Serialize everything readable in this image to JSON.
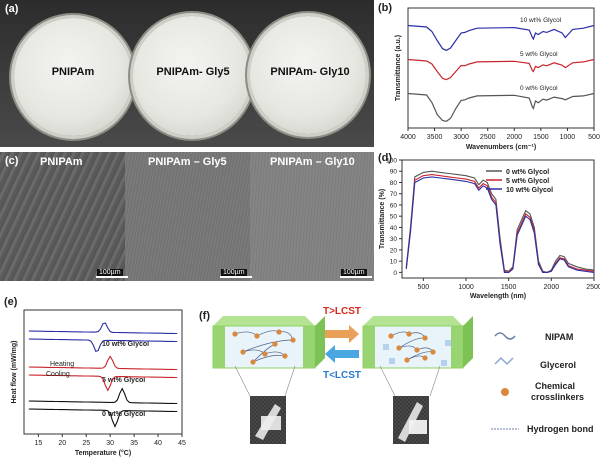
{
  "panel_labels": {
    "a": "(a)",
    "b": "(b)",
    "c": "(c)",
    "d": "(d)",
    "e": "(e)",
    "f": "(f)"
  },
  "panel_a": {
    "samples": [
      "PNIPAm",
      "PNIPAm- Gly5",
      "PNIPAm- Gly10"
    ]
  },
  "panel_c": {
    "samples": [
      "PNIPAm",
      "PNIPAm – Gly5",
      "PNIPAm – Gly10"
    ],
    "scale_bar": "100µm"
  },
  "panel_f": {
    "arrow_top": "T>LCST",
    "arrow_bottom": "T<LCST",
    "legend": [
      "NIPAM",
      "Glycerol",
      "Chemical crosslinkers",
      "Hydrogen bond"
    ],
    "colors": {
      "gel": "#8fd163",
      "arrow_top": "#e9a15a",
      "arrow_bottom": "#4aa6e0",
      "crosslinker": "#d8893c"
    }
  },
  "chart_data": [
    {
      "id": "b",
      "type": "line",
      "xlabel": "Wavenumbers (cm⁻¹)",
      "ylabel": "Transmittance (a.u.)",
      "xlim": [
        4000,
        500
      ],
      "xticks": [
        4000,
        3500,
        3000,
        2500,
        2000,
        1500,
        1000,
        500
      ],
      "series": [
        {
          "name": "10 wt% Glycol",
          "color": "#2b2fa8",
          "offset": 2,
          "x": [
            4000,
            3650,
            3550,
            3450,
            3350,
            3280,
            3200,
            3100,
            3000,
            2930,
            2850,
            2700,
            2000,
            1720,
            1660,
            1640,
            1600,
            1550,
            1460,
            1390,
            1250,
            1100,
            1040,
            900,
            700,
            500
          ],
          "y": [
            0.95,
            0.9,
            0.75,
            0.45,
            0.18,
            0.12,
            0.2,
            0.45,
            0.7,
            0.72,
            0.78,
            0.86,
            0.88,
            0.8,
            0.55,
            0.5,
            0.7,
            0.65,
            0.75,
            0.72,
            0.82,
            0.7,
            0.55,
            0.82,
            0.86,
            0.95
          ]
        },
        {
          "name": "5 wt% Glycol",
          "color": "#c8242c",
          "offset": 1,
          "x": [
            4000,
            3650,
            3550,
            3450,
            3350,
            3280,
            3200,
            3100,
            3000,
            2930,
            2850,
            2700,
            2000,
            1720,
            1660,
            1640,
            1600,
            1550,
            1460,
            1390,
            1250,
            1100,
            1040,
            900,
            700,
            500
          ],
          "y": [
            0.95,
            0.9,
            0.8,
            0.55,
            0.32,
            0.28,
            0.35,
            0.55,
            0.75,
            0.74,
            0.8,
            0.87,
            0.89,
            0.82,
            0.58,
            0.55,
            0.72,
            0.68,
            0.77,
            0.74,
            0.84,
            0.76,
            0.68,
            0.84,
            0.87,
            0.95
          ]
        },
        {
          "name": "0 wt% Glycol",
          "color": "#555555",
          "offset": 0,
          "x": [
            4000,
            3650,
            3550,
            3450,
            3350,
            3280,
            3200,
            3100,
            3000,
            2930,
            2850,
            2700,
            2000,
            1720,
            1660,
            1640,
            1600,
            1550,
            1460,
            1390,
            1250,
            1100,
            1040,
            900,
            700,
            500
          ],
          "y": [
            0.95,
            0.9,
            0.65,
            0.25,
            0.05,
            0.02,
            0.12,
            0.45,
            0.72,
            0.74,
            0.8,
            0.87,
            0.89,
            0.8,
            0.5,
            0.45,
            0.7,
            0.64,
            0.76,
            0.73,
            0.83,
            0.78,
            0.74,
            0.85,
            0.87,
            0.95
          ]
        }
      ]
    },
    {
      "id": "d",
      "type": "line",
      "xlabel": "Wavelength (nm)",
      "ylabel": "Transmittance (%)",
      "xlim": [
        250,
        2500
      ],
      "ylim": [
        -5,
        100
      ],
      "xticks": [
        500,
        1000,
        1500,
        2000,
        2500
      ],
      "yticks": [
        0,
        10,
        20,
        30,
        40,
        50,
        60,
        70,
        80,
        90,
        100
      ],
      "x": [
        300,
        350,
        400,
        500,
        600,
        700,
        800,
        900,
        1000,
        1100,
        1150,
        1200,
        1250,
        1300,
        1350,
        1400,
        1450,
        1500,
        1550,
        1600,
        1700,
        1750,
        1800,
        1850,
        1900,
        1950,
        2000,
        2050,
        2100,
        2150,
        2200,
        2300,
        2400,
        2500
      ],
      "series": [
        {
          "name": "0  wt% Glycol",
          "color": "#555555",
          "y": [
            5,
            40,
            85,
            89,
            90,
            89,
            88,
            87,
            86,
            84,
            78,
            82,
            80,
            70,
            65,
            30,
            2,
            1,
            5,
            38,
            55,
            52,
            40,
            10,
            1,
            0,
            2,
            10,
            15,
            14,
            8,
            5,
            3,
            2
          ]
        },
        {
          "name": "5  wt% Glycol",
          "color": "#c8242c",
          "y": [
            4,
            38,
            82,
            86,
            87,
            86,
            85,
            84,
            83,
            81,
            75,
            79,
            77,
            67,
            62,
            27,
            1,
            0,
            4,
            35,
            52,
            49,
            37,
            8,
            0,
            0,
            1,
            8,
            13,
            12,
            6,
            3,
            2,
            1
          ]
        },
        {
          "name": "10 wt% Glycol",
          "color": "#2b2fa8",
          "y": [
            3,
            36,
            80,
            84,
            85,
            84,
            83,
            82,
            81,
            79,
            73,
            77,
            75,
            65,
            60,
            25,
            0,
            0,
            3,
            33,
            50,
            47,
            35,
            7,
            0,
            0,
            1,
            7,
            12,
            11,
            5,
            2,
            1,
            0
          ]
        }
      ]
    },
    {
      "id": "e",
      "type": "line",
      "xlabel": "Temperature (°C)",
      "ylabel": "Heat flow (mW/mg)",
      "xlim": [
        12,
        45
      ],
      "xticks": [
        15,
        20,
        25,
        30,
        35,
        40,
        45
      ],
      "annotations": {
        "heating": "Heating",
        "cooling": "Cooling"
      },
      "series": [
        {
          "name": "10 wt% Glycol",
          "color": "#2b2fa8",
          "mode": "heating",
          "peak_T": 28.8,
          "peak_h": 10,
          "label": "10 wt% Glycol"
        },
        {
          "name": "10 wt% Glycol cooling",
          "color": "#2b2fa8",
          "mode": "cooling",
          "peak_T": 27.2,
          "peak_h": 12
        },
        {
          "name": "5 wt% Glycol",
          "color": "#c8242c",
          "mode": "heating",
          "peak_T": 30.0,
          "peak_h": 12,
          "label": "5 wt% Glycol"
        },
        {
          "name": "5 wt% Glycol cooling",
          "color": "#c8242c",
          "mode": "cooling",
          "peak_T": 29.5,
          "peak_h": 14
        },
        {
          "name": "0 wt% Glycol",
          "color": "#111111",
          "mode": "heating",
          "peak_T": 32.5,
          "peak_h": 14,
          "label": "0 wt% Glycol"
        },
        {
          "name": "0 wt% Glycol cooling",
          "color": "#111111",
          "mode": "cooling",
          "peak_T": 31.0,
          "peak_h": 16
        }
      ]
    }
  ]
}
